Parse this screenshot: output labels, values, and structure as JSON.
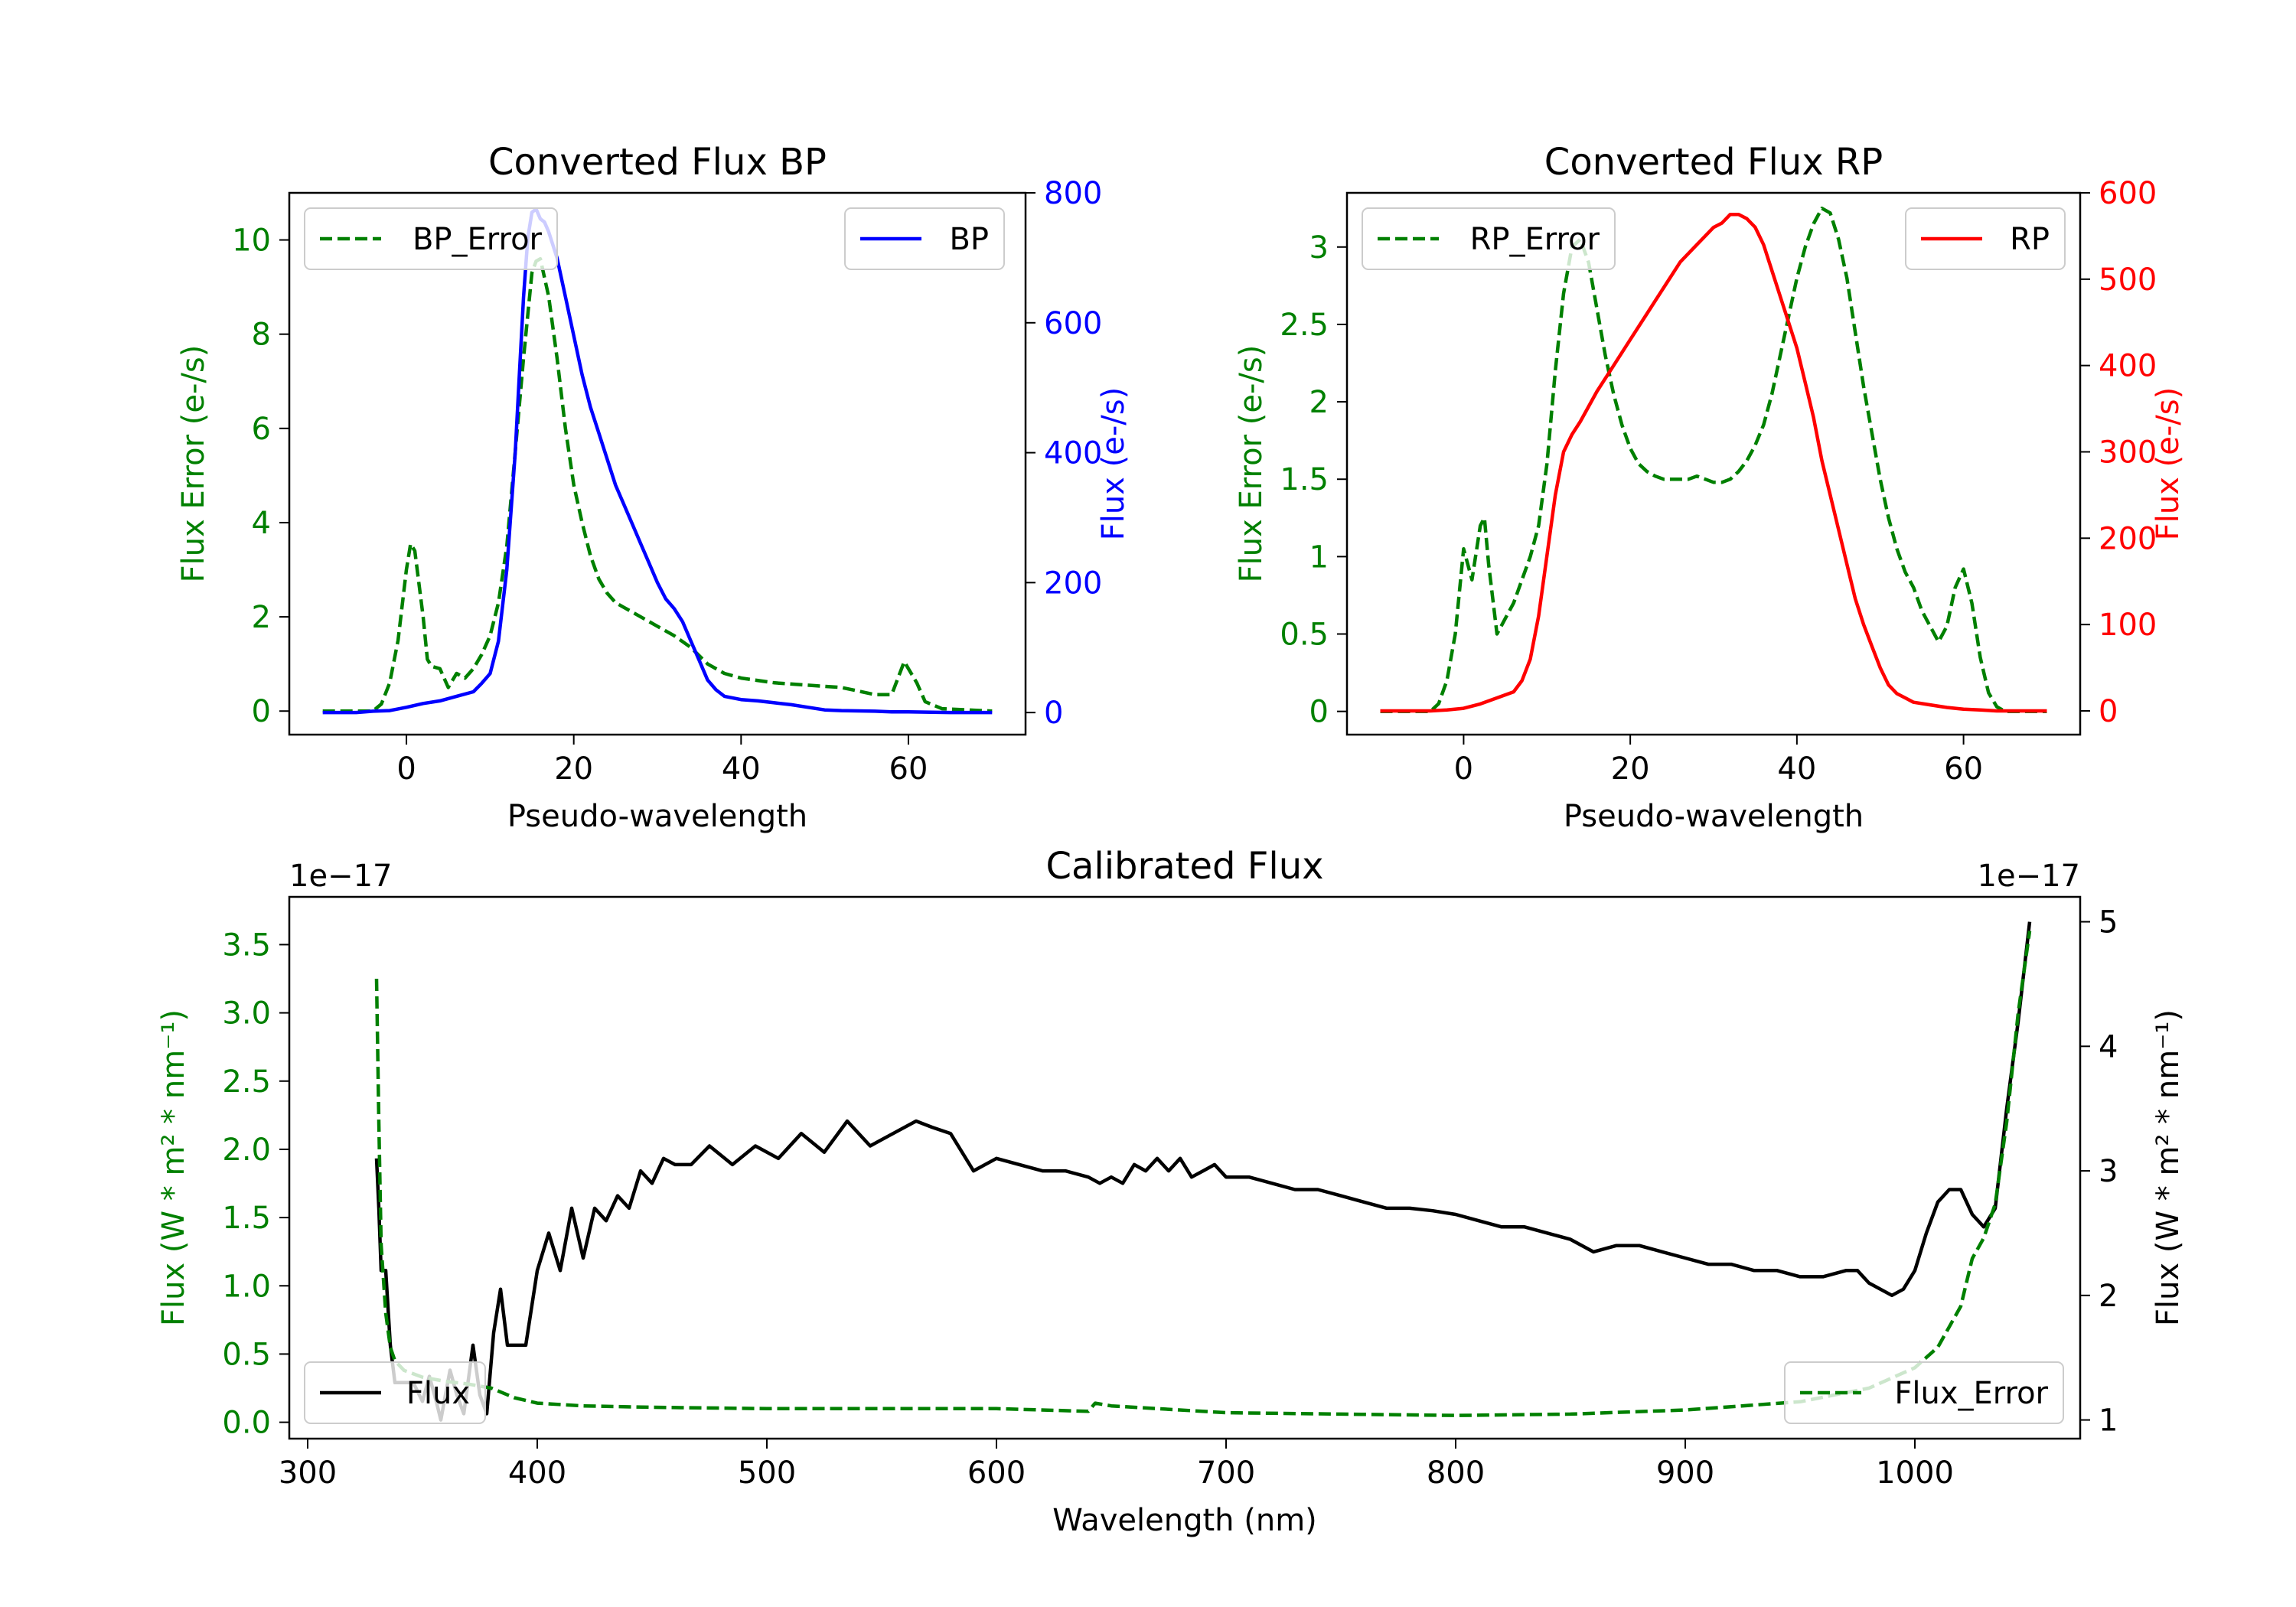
{
  "chart_data": [
    {
      "id": "bp",
      "type": "line",
      "title": "Converted Flux BP",
      "xlabel": "Pseudo-wavelength",
      "xlim": [
        -14,
        74
      ],
      "xticks": [
        0,
        20,
        40,
        60
      ],
      "left_axis": {
        "label": "Flux Error (e-/s)",
        "color": "#008000",
        "lim": [
          -0.5,
          11.0
        ],
        "ticks": [
          0,
          2,
          4,
          6,
          8,
          10
        ]
      },
      "right_axis": {
        "label": "Flux (e-/s)",
        "color": "#0000ff",
        "lim": [
          -34,
          800
        ],
        "ticks": [
          0,
          200,
          400,
          600,
          800
        ]
      },
      "series": [
        {
          "name": "BP_Error",
          "axis": "left",
          "color": "#008000",
          "dash": true,
          "x": [
            -10,
            -4,
            -3,
            -2,
            -1,
            0,
            0.5,
            1,
            2,
            2.5,
            3,
            4,
            5,
            6,
            7,
            8,
            9,
            10,
            11,
            12,
            13,
            14,
            15,
            15.5,
            16,
            17,
            18,
            19,
            20,
            21,
            22,
            23,
            24,
            25,
            26,
            27,
            28,
            30,
            32,
            34,
            36,
            38,
            40,
            44,
            48,
            52,
            56,
            58,
            59.5,
            61,
            62,
            64,
            70
          ],
          "values": [
            0,
            0,
            0.15,
            0.6,
            1.5,
            3.0,
            3.55,
            3.4,
            2.0,
            1.1,
            0.95,
            0.9,
            0.5,
            0.8,
            0.7,
            0.9,
            1.2,
            1.6,
            2.3,
            3.5,
            5.5,
            7.5,
            9.3,
            9.55,
            9.6,
            8.8,
            7.5,
            6.0,
            4.8,
            4.0,
            3.3,
            2.8,
            2.5,
            2.3,
            2.2,
            2.1,
            2.0,
            1.8,
            1.6,
            1.35,
            1.0,
            0.8,
            0.7,
            0.6,
            0.55,
            0.5,
            0.35,
            0.35,
            1.05,
            0.6,
            0.2,
            0.05,
            0
          ]
        },
        {
          "name": "BP",
          "axis": "right",
          "color": "#0000ff",
          "dash": false,
          "x": [
            -10,
            -6,
            -4,
            -2,
            0,
            2,
            4,
            6,
            8,
            9,
            10,
            11,
            12,
            13,
            13.5,
            14,
            14.5,
            15,
            15.5,
            16,
            16.5,
            17,
            18,
            19,
            20,
            21,
            22,
            23,
            24,
            25,
            26,
            27,
            28,
            29,
            30,
            31,
            32,
            33,
            34,
            35,
            36,
            37,
            38,
            40,
            42,
            44,
            46,
            48,
            50,
            52,
            56,
            58,
            60,
            65,
            70
          ],
          "values": [
            0,
            0,
            2,
            3,
            8,
            14,
            18,
            25,
            32,
            45,
            60,
            110,
            220,
            400,
            520,
            640,
            730,
            770,
            775,
            760,
            755,
            740,
            700,
            640,
            580,
            520,
            470,
            430,
            390,
            350,
            320,
            290,
            260,
            230,
            200,
            175,
            160,
            140,
            110,
            80,
            50,
            35,
            25,
            20,
            18,
            15,
            12,
            8,
            4,
            3,
            2,
            1,
            1,
            0,
            0
          ]
        }
      ],
      "legend": [
        {
          "label": "BP_Error",
          "position": "upper-left"
        },
        {
          "label": "BP",
          "position": "upper-right"
        }
      ]
    },
    {
      "id": "rp",
      "type": "line",
      "title": "Converted Flux RP",
      "xlabel": "Pseudo-wavelength",
      "xlim": [
        -14,
        74
      ],
      "xticks": [
        0,
        20,
        40,
        60
      ],
      "left_axis": {
        "label": "Flux Error (e-/s)",
        "color": "#008000",
        "lim": [
          -0.15,
          3.35
        ],
        "ticks": [
          0.0,
          0.5,
          1.0,
          1.5,
          2.0,
          2.5,
          3.0
        ]
      },
      "right_axis": {
        "label": "Flux (e-/s)",
        "color": "#ff0000",
        "lim": [
          -27.5,
          600
        ],
        "ticks": [
          0,
          100,
          200,
          300,
          400,
          500,
          600
        ]
      },
      "series": [
        {
          "name": "RP_Error",
          "axis": "left",
          "color": "#008000",
          "dash": true,
          "x": [
            -10,
            -4,
            -3,
            -2,
            -1,
            0,
            1,
            2,
            2.5,
            3,
            4,
            5,
            6,
            7,
            8,
            9,
            10,
            11,
            12,
            13,
            14,
            15,
            16,
            17,
            18,
            19,
            20,
            21,
            22,
            23,
            24,
            25,
            26,
            27,
            28,
            29,
            30,
            31,
            32,
            33,
            34,
            35,
            36,
            37,
            38,
            39,
            40,
            41,
            42,
            43,
            44,
            45,
            46,
            47,
            48,
            49,
            50,
            51,
            52,
            53,
            54,
            55,
            56,
            57,
            58,
            59,
            60,
            61,
            62,
            63,
            64,
            65,
            70
          ],
          "values": [
            0,
            0,
            0.05,
            0.2,
            0.5,
            1.05,
            0.85,
            1.2,
            1.25,
            0.95,
            0.5,
            0.6,
            0.7,
            0.85,
            1.0,
            1.2,
            1.6,
            2.2,
            2.7,
            3.0,
            3.05,
            2.9,
            2.6,
            2.3,
            2.05,
            1.85,
            1.7,
            1.6,
            1.55,
            1.52,
            1.5,
            1.5,
            1.5,
            1.5,
            1.52,
            1.5,
            1.48,
            1.48,
            1.5,
            1.55,
            1.62,
            1.72,
            1.85,
            2.05,
            2.3,
            2.55,
            2.8,
            3.0,
            3.15,
            3.25,
            3.22,
            3.05,
            2.8,
            2.45,
            2.1,
            1.8,
            1.5,
            1.25,
            1.05,
            0.9,
            0.8,
            0.65,
            0.55,
            0.45,
            0.55,
            0.8,
            0.92,
            0.7,
            0.35,
            0.12,
            0.03,
            0,
            0
          ]
        },
        {
          "name": "RP",
          "axis": "right",
          "color": "#ff0000",
          "dash": false,
          "x": [
            -10,
            -4,
            -2,
            0,
            2,
            4,
            6,
            7,
            8,
            9,
            10,
            11,
            12,
            13,
            14,
            16,
            18,
            20,
            22,
            24,
            26,
            28,
            30,
            31,
            32,
            33,
            34,
            35,
            36,
            37,
            38,
            39,
            40,
            41,
            42,
            43,
            44,
            45,
            46,
            47,
            48,
            49,
            50,
            51,
            52,
            53,
            54,
            56,
            58,
            60,
            62,
            64,
            66,
            70
          ],
          "values": [
            0,
            0,
            1,
            3,
            8,
            15,
            22,
            35,
            60,
            110,
            180,
            250,
            300,
            320,
            335,
            370,
            400,
            430,
            460,
            490,
            520,
            540,
            560,
            565,
            575,
            575,
            570,
            560,
            540,
            510,
            480,
            450,
            420,
            380,
            340,
            290,
            250,
            210,
            170,
            130,
            100,
            75,
            50,
            30,
            20,
            15,
            10,
            7,
            4,
            2,
            1,
            0,
            0,
            0
          ]
        }
      ],
      "legend": [
        {
          "label": "RP_Error",
          "position": "upper-left"
        },
        {
          "label": "RP",
          "position": "upper-right"
        }
      ]
    },
    {
      "id": "cal",
      "type": "line",
      "title": "Calibrated Flux",
      "xlabel": "Wavelength (nm)",
      "xlim": [
        292,
        1072
      ],
      "xticks": [
        300,
        400,
        500,
        600,
        700,
        800,
        900,
        1000
      ],
      "left_axis": {
        "label": "Flux (W * m² * nm⁻¹)",
        "offset_text": "1e−17",
        "color": "#008000",
        "lim": [
          -0.12,
          3.85
        ],
        "ticks": [
          0.0,
          0.5,
          1.0,
          1.5,
          2.0,
          2.5,
          3.0,
          3.5
        ],
        "tick_labels": [
          "0.0",
          "0.5",
          "1.0",
          "1.5",
          "2.0",
          "2.5",
          "3.0",
          "3.5"
        ]
      },
      "right_axis": {
        "label": "Flux (W * m² * nm⁻¹)",
        "offset_text": "1e−17",
        "color": "#000000",
        "lim": [
          0.85,
          5.2
        ],
        "ticks": [
          1,
          2,
          3,
          4,
          5
        ]
      },
      "series": [
        {
          "name": "Flux",
          "axis": "right",
          "color": "#000000",
          "dash": false,
          "x": [
            330,
            331,
            332,
            334,
            335,
            336,
            338,
            340,
            343,
            346,
            350,
            353,
            356,
            358,
            362,
            365,
            368,
            372,
            375,
            378,
            381,
            384,
            387,
            390,
            395,
            400,
            405,
            410,
            415,
            420,
            425,
            430,
            435,
            440,
            445,
            450,
            455,
            460,
            467,
            475,
            485,
            495,
            505,
            515,
            525,
            535,
            545,
            555,
            565,
            572,
            580,
            590,
            600,
            610,
            620,
            630,
            640,
            645,
            650,
            655,
            660,
            665,
            670,
            675,
            680,
            685,
            690,
            695,
            700,
            710,
            720,
            730,
            740,
            750,
            760,
            770,
            780,
            790,
            800,
            810,
            820,
            830,
            840,
            850,
            860,
            870,
            880,
            890,
            900,
            910,
            920,
            930,
            940,
            950,
            960,
            970,
            975,
            980,
            990,
            995,
            1000,
            1005,
            1010,
            1015,
            1020,
            1025,
            1030,
            1035,
            1040,
            1045,
            1050
          ],
          "values": [
            3.1,
            2.7,
            2.2,
            2.2,
            1.9,
            1.6,
            1.3,
            1.3,
            1.3,
            1.3,
            1.15,
            1.35,
            1.15,
            1.0,
            1.4,
            1.2,
            1.05,
            1.6,
            1.2,
            1.05,
            1.7,
            2.05,
            1.6,
            1.6,
            1.6,
            2.2,
            2.5,
            2.2,
            2.7,
            2.3,
            2.7,
            2.6,
            2.8,
            2.7,
            3.0,
            2.9,
            3.1,
            3.05,
            3.05,
            3.2,
            3.05,
            3.2,
            3.1,
            3.3,
            3.15,
            3.4,
            3.2,
            3.3,
            3.4,
            3.35,
            3.3,
            3.0,
            3.1,
            3.05,
            3.0,
            3.0,
            2.95,
            2.9,
            2.95,
            2.9,
            3.05,
            3.0,
            3.1,
            3.0,
            3.1,
            2.95,
            3.0,
            3.05,
            2.95,
            2.95,
            2.9,
            2.85,
            2.85,
            2.8,
            2.75,
            2.7,
            2.7,
            2.68,
            2.65,
            2.6,
            2.55,
            2.55,
            2.5,
            2.45,
            2.35,
            2.4,
            2.4,
            2.35,
            2.3,
            2.25,
            2.25,
            2.2,
            2.2,
            2.15,
            2.15,
            2.2,
            2.2,
            2.1,
            2.0,
            2.05,
            2.2,
            2.5,
            2.75,
            2.85,
            2.85,
            2.65,
            2.55,
            2.7,
            3.5,
            4.2,
            5.0
          ]
        },
        {
          "name": "Flux_Error",
          "axis": "left",
          "color": "#008000",
          "dash": true,
          "x": [
            330,
            331,
            332,
            334,
            336,
            338,
            342,
            350,
            360,
            370,
            380,
            390,
            400,
            420,
            450,
            500,
            550,
            600,
            640,
            643,
            650,
            700,
            750,
            800,
            850,
            900,
            950,
            980,
            1000,
            1010,
            1015,
            1020,
            1025,
            1030,
            1035,
            1040,
            1045,
            1050
          ],
          "values": [
            3.25,
            2.2,
            1.3,
            0.8,
            0.55,
            0.45,
            0.38,
            0.33,
            0.3,
            0.28,
            0.25,
            0.18,
            0.14,
            0.12,
            0.11,
            0.1,
            0.1,
            0.1,
            0.08,
            0.14,
            0.12,
            0.07,
            0.06,
            0.05,
            0.06,
            0.09,
            0.15,
            0.25,
            0.4,
            0.55,
            0.7,
            0.85,
            1.2,
            1.35,
            1.6,
            2.2,
            3.0,
            3.6
          ]
        }
      ],
      "legend": [
        {
          "label": "Flux",
          "position": "lower-left"
        },
        {
          "label": "Flux_Error",
          "position": "lower-right"
        }
      ]
    }
  ]
}
